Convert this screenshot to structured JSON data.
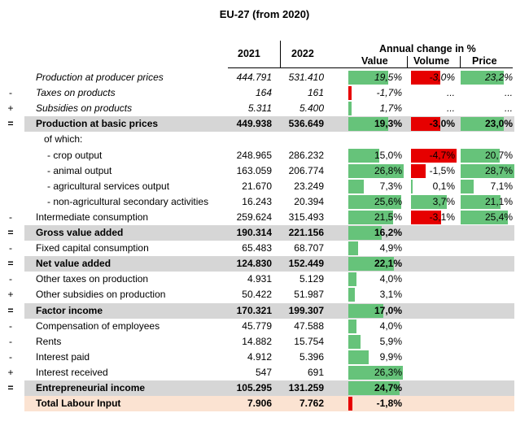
{
  "title": "EU-27 (from 2020)",
  "headers": {
    "y2021": "2021",
    "y2022": "2022",
    "annual_change": "Annual change in %",
    "value": "Value",
    "volume": "Volume",
    "price": "Price"
  },
  "colors": {
    "positive": "#66c37a",
    "negative": "#e60000",
    "shade": "#d6d6d6",
    "labour": "#fbe3d2"
  },
  "rows": [
    {
      "sign": "",
      "label": "Production at producer prices",
      "y2021": "444.791",
      "y2022": "531.410",
      "value": "19,5%",
      "volume": "-3,0%",
      "price": "23,2%",
      "value_num": 19.5,
      "volume_num": -3.0,
      "price_num": 23.2,
      "style": "italic"
    },
    {
      "sign": "-",
      "label": "Taxes on products",
      "y2021": "164",
      "y2022": "161",
      "value": "-1,7%",
      "volume": "...",
      "price": "...",
      "value_num": -1.7,
      "style": "italic"
    },
    {
      "sign": "+",
      "label": "Subsidies on products",
      "y2021": "5.311",
      "y2022": "5.400",
      "value": "1,7%",
      "volume": "...",
      "price": "...",
      "value_num": 1.7,
      "style": "italic"
    },
    {
      "sign": "=",
      "label": "Production at basic prices",
      "y2021": "449.938",
      "y2022": "536.649",
      "value": "19,3%",
      "volume": "-3,0%",
      "price": "23,0%",
      "value_num": 19.3,
      "volume_num": -3.0,
      "price_num": 23.0,
      "style": "bold",
      "shade": true
    },
    {
      "sign": "",
      "label": "of which:",
      "y2021": "",
      "y2022": "",
      "value": "",
      "volume": "",
      "price": "",
      "style": "indent1"
    },
    {
      "sign": "",
      "label": "- crop output",
      "y2021": "248.965",
      "y2022": "286.232",
      "value": "15,0%",
      "volume": "-4,7%",
      "price": "20,7%",
      "value_num": 15.0,
      "volume_num": -4.7,
      "price_num": 20.7,
      "style": "indent2"
    },
    {
      "sign": "",
      "label": "- animal output",
      "y2021": "163.059",
      "y2022": "206.774",
      "value": "26,8%",
      "volume": "-1,5%",
      "price": "28,7%",
      "value_num": 26.8,
      "volume_num": -1.5,
      "price_num": 28.7,
      "style": "indent2"
    },
    {
      "sign": "",
      "label": "- agricultural services output",
      "y2021": "21.670",
      "y2022": "23.249",
      "value": "7,3%",
      "volume": "0,1%",
      "price": "7,1%",
      "value_num": 7.3,
      "volume_num": 0.1,
      "price_num": 7.1,
      "style": "indent2"
    },
    {
      "sign": "",
      "label": "- non-agricultural secondary activities",
      "y2021": "16.243",
      "y2022": "20.394",
      "value": "25,6%",
      "volume": "3,7%",
      "price": "21,1%",
      "value_num": 25.6,
      "volume_num": 3.7,
      "price_num": 21.1,
      "style": "indent2"
    },
    {
      "sign": "-",
      "label": "Intermediate consumption",
      "y2021": "259.624",
      "y2022": "315.493",
      "value": "21,5%",
      "volume": "-3,1%",
      "price": "25,4%",
      "value_num": 21.5,
      "volume_num": -3.1,
      "price_num": 25.4
    },
    {
      "sign": "=",
      "label": "Gross value added",
      "y2021": "190.314",
      "y2022": "221.156",
      "value": "16,2%",
      "volume": "",
      "price": "",
      "value_num": 16.2,
      "style": "bold",
      "shade": true
    },
    {
      "sign": "-",
      "label": "Fixed capital consumption",
      "y2021": "65.483",
      "y2022": "68.707",
      "value": "4,9%",
      "volume": "",
      "price": "",
      "value_num": 4.9
    },
    {
      "sign": "=",
      "label": "Net value added",
      "y2021": "124.830",
      "y2022": "152.449",
      "value": "22,1%",
      "volume": "",
      "price": "",
      "value_num": 22.1,
      "style": "bold",
      "shade": true
    },
    {
      "sign": "-",
      "label": "Other taxes on production",
      "y2021": "4.931",
      "y2022": "5.129",
      "value": "4,0%",
      "volume": "",
      "price": "",
      "value_num": 4.0
    },
    {
      "sign": "+",
      "label": "Other subsidies on production",
      "y2021": "50.422",
      "y2022": "51.987",
      "value": "3,1%",
      "volume": "",
      "price": "",
      "value_num": 3.1
    },
    {
      "sign": "=",
      "label": "Factor income",
      "y2021": "170.321",
      "y2022": "199.307",
      "value": "17,0%",
      "volume": "",
      "price": "",
      "value_num": 17.0,
      "style": "bold",
      "shade": true
    },
    {
      "sign": "-",
      "label": "Compensation of employees",
      "y2021": "45.779",
      "y2022": "47.588",
      "value": "4,0%",
      "volume": "",
      "price": "",
      "value_num": 4.0
    },
    {
      "sign": "-",
      "label": "Rents",
      "y2021": "14.882",
      "y2022": "15.754",
      "value": "5,9%",
      "volume": "",
      "price": "",
      "value_num": 5.9
    },
    {
      "sign": "-",
      "label": "Interest paid",
      "y2021": "4.912",
      "y2022": "5.396",
      "value": "9,9%",
      "volume": "",
      "price": "",
      "value_num": 9.9
    },
    {
      "sign": "+",
      "label": "Interest received",
      "y2021": "547",
      "y2022": "691",
      "value": "26,3%",
      "volume": "",
      "price": "",
      "value_num": 26.3
    },
    {
      "sign": "=",
      "label": "Entrepreneurial income",
      "y2021": "105.295",
      "y2022": "131.259",
      "value": "24,7%",
      "volume": "",
      "price": "",
      "value_num": 24.7,
      "style": "bold",
      "shade": true
    },
    {
      "sign": "",
      "label": "Total Labour Input",
      "y2021": "7.906",
      "y2022": "7.762",
      "value": "-1,8%",
      "volume": "",
      "price": "",
      "value_num": -1.8,
      "style": "bold",
      "labour": true
    }
  ]
}
